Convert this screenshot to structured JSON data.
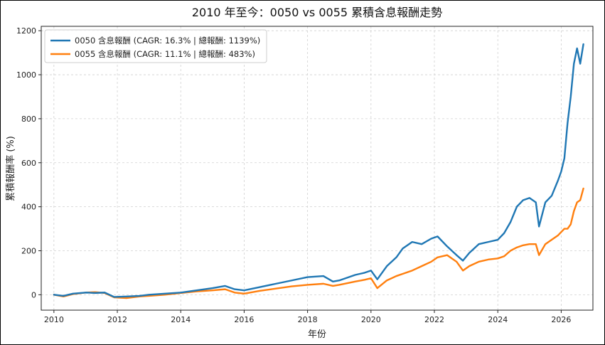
{
  "chart_data": {
    "type": "line",
    "title": "2010 年至今：0050 vs 0055 累積含息報酬走勢",
    "xlabel": "年份",
    "ylabel": "累積報酬率 (%)",
    "xlim": [
      2009.6,
      2027.0
    ],
    "ylim": [
      -70,
      1220
    ],
    "xticks": [
      2010,
      2012,
      2014,
      2016,
      2018,
      2020,
      2022,
      2024,
      2026
    ],
    "yticks": [
      0,
      200,
      400,
      600,
      800,
      1000,
      1200
    ],
    "grid": true,
    "legend_position": "top-left",
    "series": [
      {
        "name": "0050 含息報酬 (CAGR: 16.3% | 總報酬: 1139%)",
        "color": "#1f77b4",
        "x": [
          2010.0,
          2010.3,
          2010.6,
          2011.0,
          2011.3,
          2011.6,
          2011.9,
          2012.3,
          2012.7,
          2013.0,
          2013.5,
          2014.0,
          2014.5,
          2015.0,
          2015.4,
          2015.7,
          2016.0,
          2016.5,
          2017.0,
          2017.5,
          2018.0,
          2018.5,
          2018.8,
          2019.0,
          2019.5,
          2019.8,
          2020.0,
          2020.2,
          2020.5,
          2020.8,
          2021.0,
          2021.3,
          2021.6,
          2021.9,
          2022.1,
          2022.4,
          2022.7,
          2022.9,
          2023.1,
          2023.4,
          2023.7,
          2024.0,
          2024.2,
          2024.4,
          2024.6,
          2024.8,
          2025.0,
          2025.2,
          2025.3,
          2025.5,
          2025.7,
          2025.9,
          2026.0,
          2026.1,
          2026.2,
          2026.3,
          2026.4,
          2026.5,
          2026.6,
          2026.7
        ],
        "values": [
          0,
          -5,
          5,
          10,
          8,
          10,
          -10,
          -8,
          -5,
          0,
          5,
          10,
          20,
          30,
          40,
          25,
          20,
          35,
          50,
          65,
          80,
          85,
          60,
          65,
          90,
          100,
          110,
          70,
          130,
          170,
          210,
          240,
          230,
          255,
          265,
          220,
          180,
          155,
          190,
          230,
          240,
          250,
          280,
          330,
          400,
          430,
          440,
          420,
          310,
          420,
          450,
          520,
          560,
          620,
          780,
          900,
          1050,
          1120,
          1050,
          1139
        ]
      },
      {
        "name": "0055 含息報酬 (CAGR: 11.1% | 總報酬: 483%)",
        "color": "#ff7f0e",
        "x": [
          2010.0,
          2010.3,
          2010.6,
          2011.0,
          2011.3,
          2011.6,
          2011.9,
          2012.3,
          2012.7,
          2013.0,
          2013.5,
          2014.0,
          2014.5,
          2015.0,
          2015.4,
          2015.7,
          2016.0,
          2016.5,
          2017.0,
          2017.5,
          2018.0,
          2018.5,
          2018.8,
          2019.0,
          2019.5,
          2019.8,
          2020.0,
          2020.2,
          2020.5,
          2020.8,
          2021.0,
          2021.3,
          2021.6,
          2021.9,
          2022.1,
          2022.4,
          2022.7,
          2022.9,
          2023.1,
          2023.4,
          2023.7,
          2024.0,
          2024.2,
          2024.4,
          2024.6,
          2024.8,
          2025.0,
          2025.2,
          2025.3,
          2025.5,
          2025.7,
          2025.9,
          2026.0,
          2026.1,
          2026.2,
          2026.3,
          2026.4,
          2026.5,
          2026.6,
          2026.7
        ],
        "values": [
          0,
          -8,
          3,
          10,
          12,
          8,
          -12,
          -15,
          -8,
          -5,
          0,
          8,
          15,
          20,
          25,
          10,
          5,
          18,
          28,
          38,
          45,
          50,
          40,
          45,
          60,
          68,
          75,
          30,
          65,
          85,
          95,
          110,
          130,
          150,
          170,
          180,
          150,
          110,
          130,
          150,
          160,
          165,
          175,
          200,
          215,
          225,
          230,
          230,
          180,
          230,
          250,
          270,
          285,
          300,
          300,
          320,
          380,
          420,
          430,
          483
        ]
      }
    ]
  }
}
